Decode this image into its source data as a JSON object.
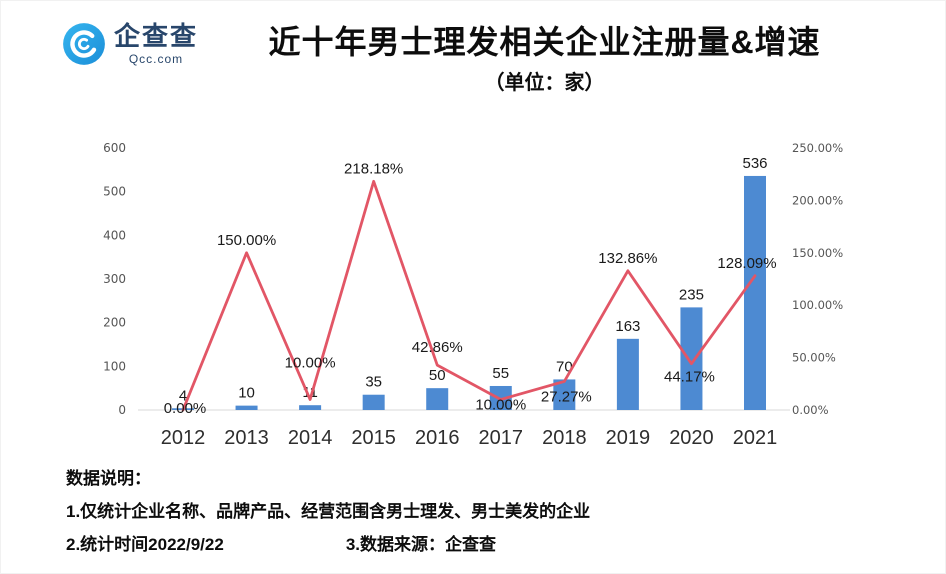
{
  "logo": {
    "name": "企查查",
    "domain": "Qcc.com"
  },
  "header": {
    "title": "近十年男士理发相关企业注册量&增速",
    "subtitle": "（单位：家）"
  },
  "chart_data": {
    "type": "combo",
    "title": "近十年男士理发相关企业注册量&增速",
    "subtitle": "（单位：家）",
    "categories": [
      "2012",
      "2013",
      "2014",
      "2015",
      "2016",
      "2017",
      "2018",
      "2019",
      "2020",
      "2021"
    ],
    "series": [
      {
        "name": "注册量",
        "type": "bar",
        "axis": "left",
        "color": "#4d8ad2",
        "values": [
          4,
          10,
          11,
          35,
          50,
          55,
          70,
          163,
          235,
          536
        ]
      },
      {
        "name": "增速",
        "type": "line",
        "axis": "right",
        "color": "#e25666",
        "values": [
          0,
          150,
          10,
          218.18,
          42.86,
          10,
          27.27,
          132.86,
          44.17,
          128.09
        ]
      }
    ],
    "bar_labels": [
      "4",
      "10",
      "11",
      "35",
      "50",
      "55",
      "70",
      "163",
      "235",
      "536"
    ],
    "line_labels": [
      "0.00%",
      "150.00%",
      "10.00%",
      "218.18%",
      "42.86%",
      "10.00%",
      "27.27%",
      "132.86%",
      "44.17%",
      "128.09%"
    ],
    "left_axis": {
      "min": 0,
      "max": 600,
      "ticks": [
        "0",
        "100",
        "200",
        "300",
        "400",
        "500",
        "600"
      ]
    },
    "right_axis": {
      "min": 0,
      "max": 250,
      "ticks": [
        "0.00%",
        "50.00%",
        "100.00%",
        "150.00%",
        "200.00%",
        "250.00%"
      ]
    },
    "grid": false,
    "legend": "none"
  },
  "footer": {
    "heading": "数据说明：",
    "line1": "1.仅统计企业名称、品牌产品、经营范围含男士理发、男士美发的企业",
    "line2": "2.统计时间2022/9/22",
    "line3": "3.数据来源：企查查"
  }
}
